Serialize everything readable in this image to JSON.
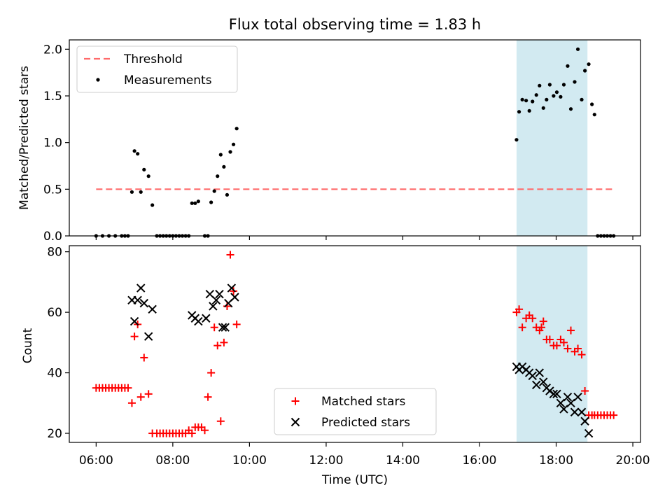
{
  "chart_data": {
    "title": "Flux total observing time = 1.83 h",
    "type": "scatter",
    "xlabel": "Time (UTC)",
    "xlim": [
      "05:18",
      "20:12"
    ],
    "xticks": [
      "06:00",
      "08:00",
      "10:00",
      "12:00",
      "14:00",
      "16:00",
      "18:00",
      "20:00"
    ],
    "shaded_interval": {
      "start": "16:58",
      "end": "18:49",
      "color": "#add8e6"
    },
    "panels": [
      {
        "ylabel": "Matched/Predicted stars",
        "ylim": [
          0,
          2.1
        ],
        "yticks": [
          "0.0",
          "0.5",
          "1.0",
          "1.5",
          "2.0"
        ],
        "legend": {
          "position": "top-left",
          "entries": [
            "Threshold",
            "Measurements"
          ]
        },
        "series": [
          {
            "name": "Threshold",
            "type": "line",
            "style": "dashed",
            "color": "#ff6b6b",
            "x": [
              "06:00",
              "19:30"
            ],
            "y": [
              0.5,
              0.5
            ]
          },
          {
            "name": "Measurements",
            "type": "scatter",
            "marker": "dot",
            "color": "#000000",
            "x": [
              "06:00",
              "06:10",
              "06:20",
              "06:30",
              "06:40",
              "06:45",
              "06:50",
              "06:56",
              "07:00",
              "07:05",
              "07:10",
              "07:15",
              "07:22",
              "07:28",
              "07:35",
              "07:40",
              "07:45",
              "07:50",
              "07:55",
              "08:00",
              "08:05",
              "08:10",
              "08:15",
              "08:20",
              "08:25",
              "08:30",
              "08:35",
              "08:40",
              "08:50",
              "08:55",
              "09:00",
              "09:05",
              "09:10",
              "09:15",
              "09:20",
              "09:25",
              "09:30",
              "09:35",
              "09:40",
              "16:58",
              "17:02",
              "17:07",
              "17:13",
              "17:18",
              "17:23",
              "17:29",
              "17:34",
              "17:40",
              "17:45",
              "17:50",
              "17:56",
              "18:01",
              "18:07",
              "18:12",
              "18:18",
              "18:23",
              "18:29",
              "18:34",
              "18:40",
              "18:45",
              "18:51",
              "18:56",
              "19:00",
              "19:05",
              "19:10",
              "19:15",
              "19:20",
              "19:25",
              "19:30"
            ],
            "y": [
              0,
              0,
              0,
              0,
              0,
              0,
              0,
              0.47,
              0.91,
              0.88,
              0.47,
              0.71,
              0.64,
              0.33,
              0,
              0,
              0,
              0,
              0,
              0,
              0,
              0,
              0,
              0,
              0,
              0.35,
              0.35,
              0.37,
              0,
              0,
              0.36,
              0.48,
              0.64,
              0.87,
              0.74,
              0.44,
              0.9,
              0.98,
              1.15,
              1.03,
              1.33,
              1.46,
              1.45,
              1.34,
              1.44,
              1.51,
              1.61,
              1.37,
              1.46,
              1.62,
              1.5,
              1.54,
              1.49,
              1.62,
              1.82,
              1.36,
              1.65,
              2.0,
              1.46,
              1.77,
              1.84,
              1.41,
              1.3,
              0,
              0,
              0,
              0,
              0,
              0
            ]
          }
        ]
      },
      {
        "ylabel": "Count",
        "ylim": [
          17,
          82
        ],
        "yticks": [
          "20",
          "40",
          "60",
          "80"
        ],
        "legend": {
          "position": "lower-center",
          "entries": [
            "Matched stars",
            "Predicted stars"
          ]
        },
        "series": [
          {
            "name": "Matched stars",
            "type": "scatter",
            "marker": "plus",
            "color": "#ff0000",
            "x": [
              "06:00",
              "06:05",
              "06:10",
              "06:15",
              "06:20",
              "06:25",
              "06:30",
              "06:35",
              "06:40",
              "06:45",
              "06:50",
              "06:56",
              "07:00",
              "07:05",
              "07:10",
              "07:15",
              "07:22",
              "07:28",
              "07:35",
              "07:40",
              "07:45",
              "07:50",
              "07:55",
              "08:00",
              "08:05",
              "08:10",
              "08:15",
              "08:20",
              "08:25",
              "08:30",
              "08:35",
              "08:40",
              "08:45",
              "08:50",
              "08:55",
              "09:00",
              "09:05",
              "09:10",
              "09:15",
              "09:20",
              "09:25",
              "09:30",
              "09:35",
              "09:40",
              "16:58",
              "17:02",
              "17:07",
              "17:13",
              "17:18",
              "17:23",
              "17:29",
              "17:34",
              "17:40",
              "17:45",
              "17:50",
              "17:56",
              "18:01",
              "18:07",
              "18:12",
              "18:18",
              "18:23",
              "18:29",
              "18:34",
              "18:40",
              "18:45",
              "18:51",
              "18:56",
              "19:00",
              "19:05",
              "19:10",
              "19:15",
              "19:20",
              "19:25",
              "19:30"
            ],
            "y": [
              35,
              35,
              35,
              35,
              35,
              35,
              35,
              35,
              35,
              35,
              35,
              30,
              52,
              56,
              32,
              45,
              33,
              20,
              20,
              20,
              20,
              20,
              20,
              20,
              20,
              20,
              20,
              20,
              21,
              20,
              22,
              22,
              22,
              21,
              32,
              40,
              55,
              49,
              24,
              50,
              62,
              79,
              67,
              56,
              60,
              61,
              55,
              58,
              59,
              58,
              55,
              54,
              57,
              51,
              51,
              49,
              49,
              51,
              50,
              48,
              54,
              47,
              48,
              46,
              34,
              26,
              26,
              26,
              26,
              26,
              26,
              26,
              26,
              26
            ],
            "extra_points_x": [
              "17:37"
            ],
            "extra_points_y": [
              55
            ]
          },
          {
            "name": "Predicted stars",
            "type": "scatter",
            "marker": "x",
            "color": "#000000",
            "x": [
              "06:56",
              "07:00",
              "07:05",
              "07:10",
              "07:15",
              "07:22",
              "07:28",
              "08:30",
              "08:35",
              "08:40",
              "08:52",
              "08:58",
              "09:03",
              "09:08",
              "09:13",
              "09:18",
              "09:22",
              "09:27",
              "09:32",
              "09:37",
              "16:58",
              "17:02",
              "17:07",
              "17:13",
              "17:18",
              "17:23",
              "17:29",
              "17:34",
              "17:40",
              "17:45",
              "17:50",
              "17:56",
              "18:01",
              "18:07",
              "18:12",
              "18:18",
              "18:23",
              "18:29",
              "18:34",
              "18:40",
              "18:45",
              "18:51"
            ],
            "y": [
              64,
              57,
              64,
              68,
              63,
              52,
              61,
              59,
              58,
              57,
              58,
              66,
              62,
              64,
              66,
              55,
              55,
              63,
              68,
              65,
              42,
              41,
              42,
              41,
              40,
              39,
              36,
              40,
              37,
              35,
              34,
              33,
              33,
              30,
              28,
              32,
              30,
              27,
              32,
              27,
              24,
              20
            ]
          }
        ]
      }
    ]
  }
}
